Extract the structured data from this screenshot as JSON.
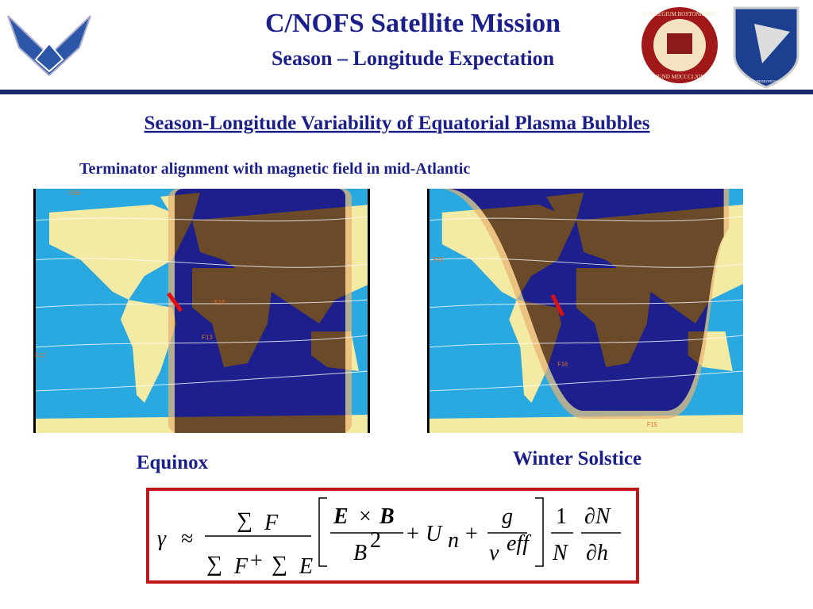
{
  "header": {
    "title": "C/NOFS Satellite Mission",
    "subtitle": "Season – Longitude Expectation",
    "logos": {
      "bc_top": "COLLEGIUM BOSTONIENSE",
      "bc_bottom": "FUND MDCCCLXIII",
      "afrl": "AIR FORCE RESEARCH LABORATORY"
    }
  },
  "heading": "Season-Longitude Variability of  Equatorial Plasma Bubbles",
  "subheading": "Terminator alignment with magnetic field in mid-Atlantic",
  "maps": [
    {
      "caption": "Equinox",
      "markers": [
        "F16",
        "F15",
        "F13",
        "F17"
      ]
    },
    {
      "caption": "Winter Solstice",
      "markers": [
        "F13",
        "F15",
        "F16"
      ]
    }
  ],
  "formula": {
    "gamma": "γ",
    "approx": "≈",
    "sum": "∑",
    "F": "F",
    "E": "E",
    "plus": "+",
    "cross": "×",
    "Ebold": "E",
    "Bbold": "B",
    "B": "B",
    "sq": "2",
    "U": "U",
    "n": "n",
    "g": "g",
    "nu": "ν",
    "eff": "eff",
    "one": "1",
    "N": "N",
    "dN": "∂N",
    "dh": "∂h"
  }
}
